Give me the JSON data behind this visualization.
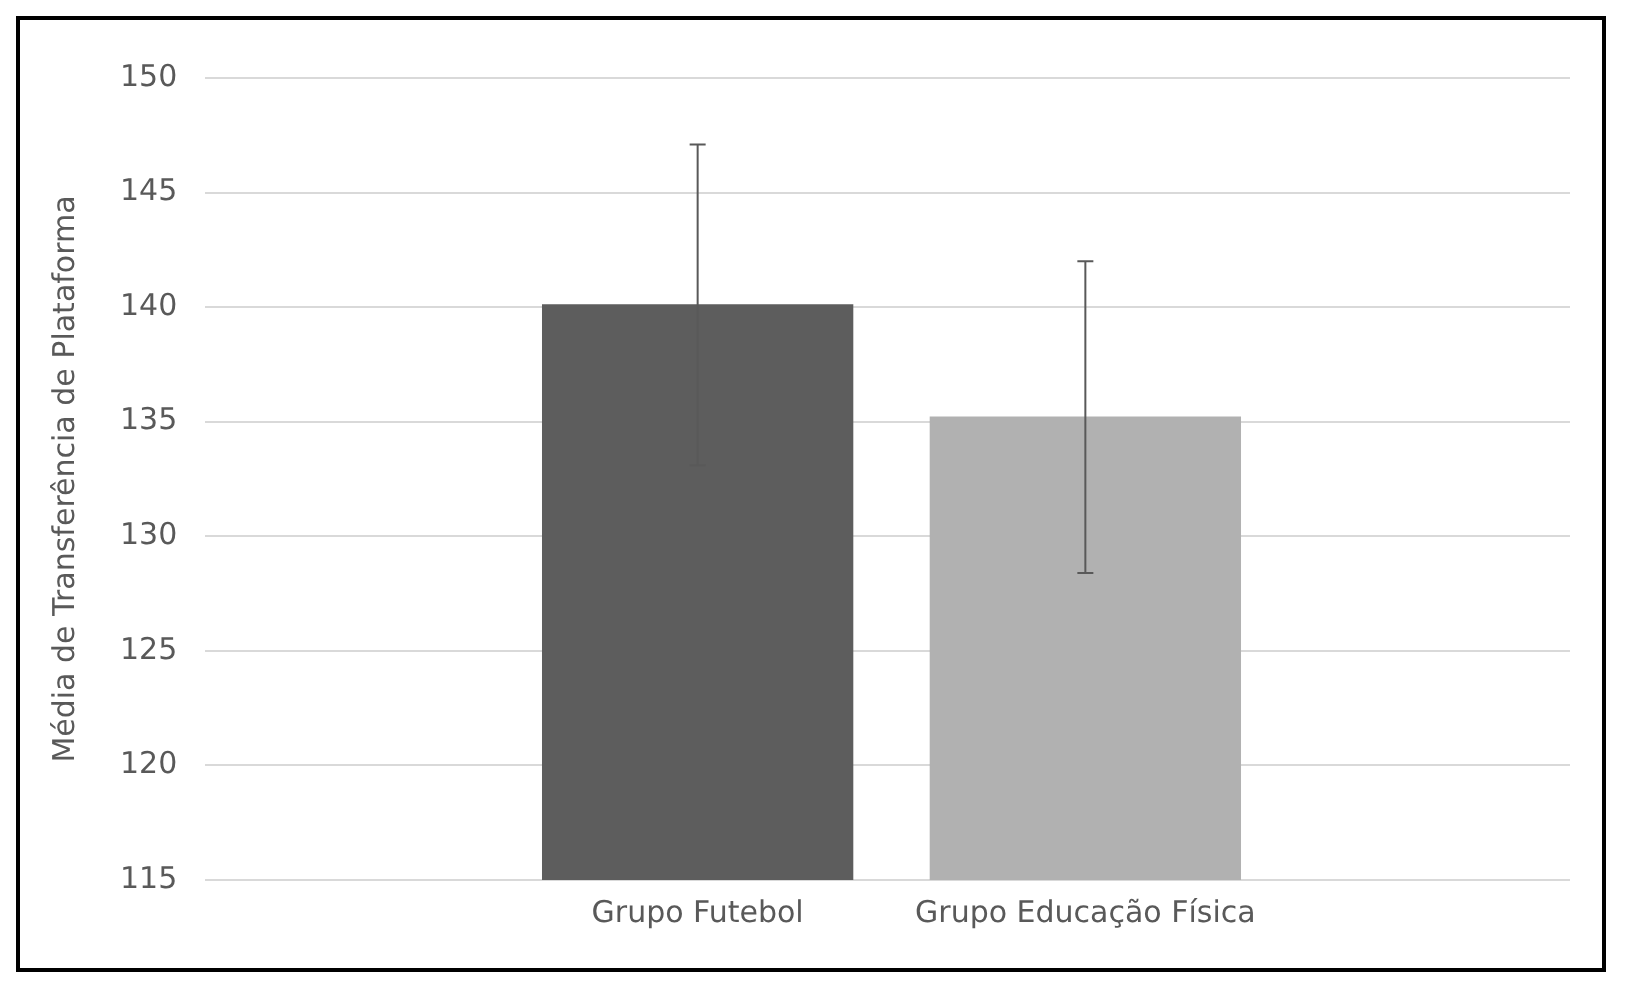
{
  "chart_data": {
    "type": "bar",
    "ylabel": "Média de Transferência de Plataforma",
    "categories": [
      "Grupo Futebol",
      "Grupo Educação Física"
    ],
    "values": [
      140.1,
      135.2
    ],
    "colors": [
      "#5d5d5d",
      "#b1b1b1"
    ],
    "errors": [
      7,
      6.8
    ],
    "ylim": [
      115,
      150
    ],
    "yticks": [
      115,
      120,
      125,
      130,
      135,
      140,
      145,
      150
    ],
    "grid": "y",
    "legend": false
  }
}
